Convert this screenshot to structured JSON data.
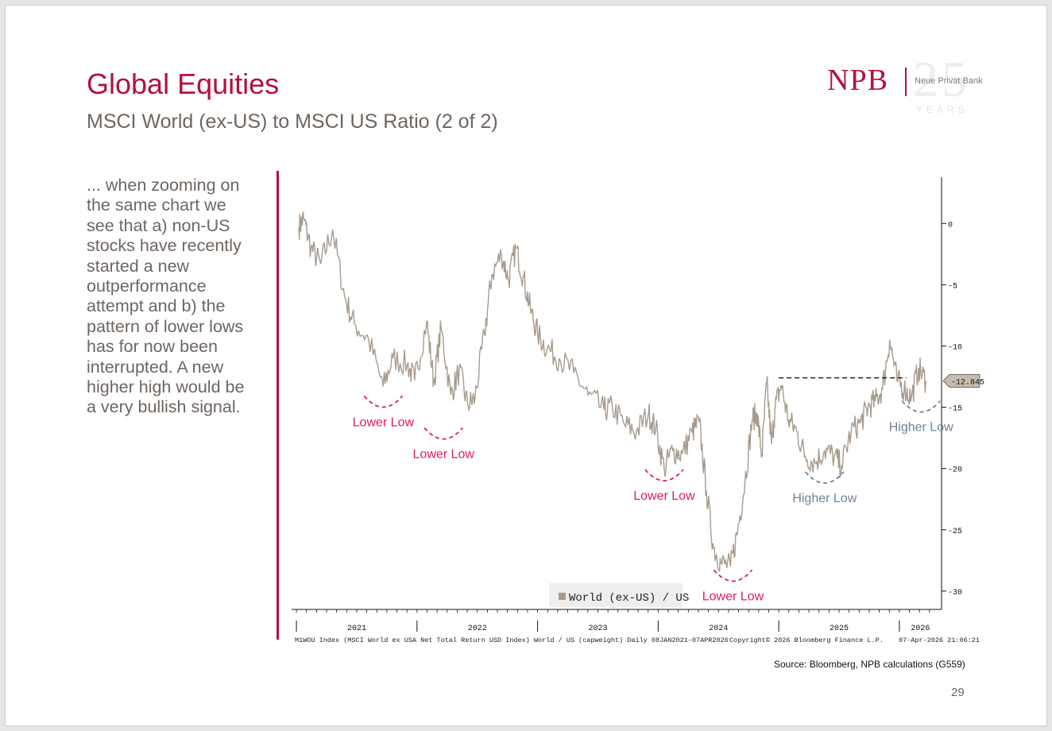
{
  "slide": {
    "title": "Global Equities",
    "subtitle": "MSCI World (ex-US) to MSCI US Ratio (2 of 2)",
    "body_text": "... when zooming on the same chart we see that a) non-US stocks have recently started a new outperformance attempt and b) the pattern of lower lows has for now been interrupted. A new higher high would be a very bullish signal.",
    "source": "Source: Bloomberg, NPB calculations (G559)",
    "page_number": "29",
    "colors": {
      "accent": "#b5103c",
      "text": "#6e6560",
      "series": "#a89b8e",
      "blue_annotation": "#6f8296"
    }
  },
  "logo": {
    "brand": "NPB",
    "bank_name": "Neue Privat Bank",
    "anniversary": "25",
    "years": "YEARS"
  },
  "chart_data": {
    "type": "line",
    "title": "MSCI World (ex-US) to MSCI US Ratio",
    "series": [
      {
        "name": "World (ex-US) / US",
        "x": [
          2021.02,
          2021.06,
          2021.12,
          2021.2,
          2021.3,
          2021.4,
          2021.48,
          2021.6,
          2021.72,
          2021.8,
          2021.92,
          2021.98,
          2022.08,
          2022.14,
          2022.2,
          2022.28,
          2022.35,
          2022.42,
          2022.48,
          2022.56,
          2022.62,
          2022.7,
          2022.76,
          2022.82,
          2022.88,
          2022.94,
          2023.0,
          2023.08,
          2023.18,
          2023.3,
          2023.42,
          2023.55,
          2023.62,
          2023.72,
          2023.82,
          2023.92,
          2023.98,
          2024.05,
          2024.12,
          2024.2,
          2024.28,
          2024.34,
          2024.4,
          2024.46,
          2024.52,
          2024.6,
          2024.66,
          2024.72,
          2024.78,
          2024.82,
          2024.86,
          2024.9,
          2024.94,
          2024.97,
          2025.02,
          2025.08,
          2025.15,
          2025.22,
          2025.3,
          2025.38,
          2025.46,
          2025.52,
          2025.6,
          2025.68,
          2025.74,
          2025.8,
          2025.86,
          2025.92,
          2025.98,
          2026.04,
          2026.1,
          2026.16,
          2026.22
        ],
        "y": [
          -0.3,
          0.4,
          -2.0,
          -3.3,
          -0.5,
          -6.0,
          -8.2,
          -9.5,
          -13.3,
          -11.0,
          -11.5,
          -12.8,
          -8.0,
          -13.0,
          -8.5,
          -14.0,
          -12.0,
          -14.8,
          -14.3,
          -9.0,
          -4.2,
          -2.5,
          -4.6,
          -2.0,
          -4.3,
          -7.0,
          -9.0,
          -10.2,
          -11.0,
          -12.2,
          -14.0,
          -15.2,
          -15.0,
          -16.4,
          -17.0,
          -15.5,
          -16.7,
          -20.0,
          -18.5,
          -18.8,
          -17.0,
          -16.2,
          -21.8,
          -26.5,
          -27.7,
          -28.0,
          -25.0,
          -21.0,
          -16.0,
          -15.5,
          -19.0,
          -13.0,
          -18.0,
          -15.0,
          -13.2,
          -16.0,
          -17.0,
          -19.0,
          -19.5,
          -18.5,
          -19.0,
          -19.8,
          -17.0,
          -16.2,
          -15.0,
          -14.5,
          -13.5,
          -9.5,
          -12.8,
          -13.5,
          -14.2,
          -11.8,
          -12.845
        ]
      }
    ],
    "last_value": "-12.845",
    "xlabel": "",
    "ylabel": "",
    "xlim": [
      2020.96,
      2026.35
    ],
    "ylim": [
      -31.5,
      3
    ],
    "x_ticks": [
      2021,
      2022,
      2023,
      2024,
      2025,
      2026
    ],
    "x_tick_labels": [
      "2021",
      "2022",
      "2023",
      "2024",
      "2025",
      "2026"
    ],
    "y_ticks": [
      0,
      -5,
      -10,
      -15,
      -20,
      -25,
      -30
    ],
    "y_tick_labels": [
      "0",
      "-5",
      "-10",
      "-15",
      "-20",
      "-25",
      "-30"
    ],
    "legend": "World (ex-US) / US",
    "legend_position": "bottom-center",
    "grid": false,
    "reference_line": {
      "value": -12.6,
      "x_from": 2025.0,
      "x_to": 2026.06,
      "style": "dashed"
    },
    "annotations": [
      {
        "label": "Lower Low",
        "x": 2021.72,
        "y": -14.6,
        "color": "#e01c5c"
      },
      {
        "label": "Lower Low",
        "x": 2022.22,
        "y": -17.2,
        "color": "#e01c5c"
      },
      {
        "label": "Lower Low",
        "x": 2024.05,
        "y": -20.6,
        "color": "#e01c5c"
      },
      {
        "label": "Lower Low",
        "x": 2024.62,
        "y": -28.8,
        "color": "#e01c5c"
      },
      {
        "label": "Higher Low",
        "x": 2025.38,
        "y": -20.8,
        "color": "#6f8296"
      },
      {
        "label": "Higher Low",
        "x": 2026.18,
        "y": -15.0,
        "color": "#6f8296"
      }
    ],
    "footer_left": "M1WOU Index (MSCI World ex USA Net Total Return USD Index) World / US (capweight) Daily 08JAN2021-07APR2026",
    "footer_center": "Copyright© 2026 Bloomberg Finance L.P.",
    "footer_right": "07-Apr-2026 21:06:21"
  }
}
